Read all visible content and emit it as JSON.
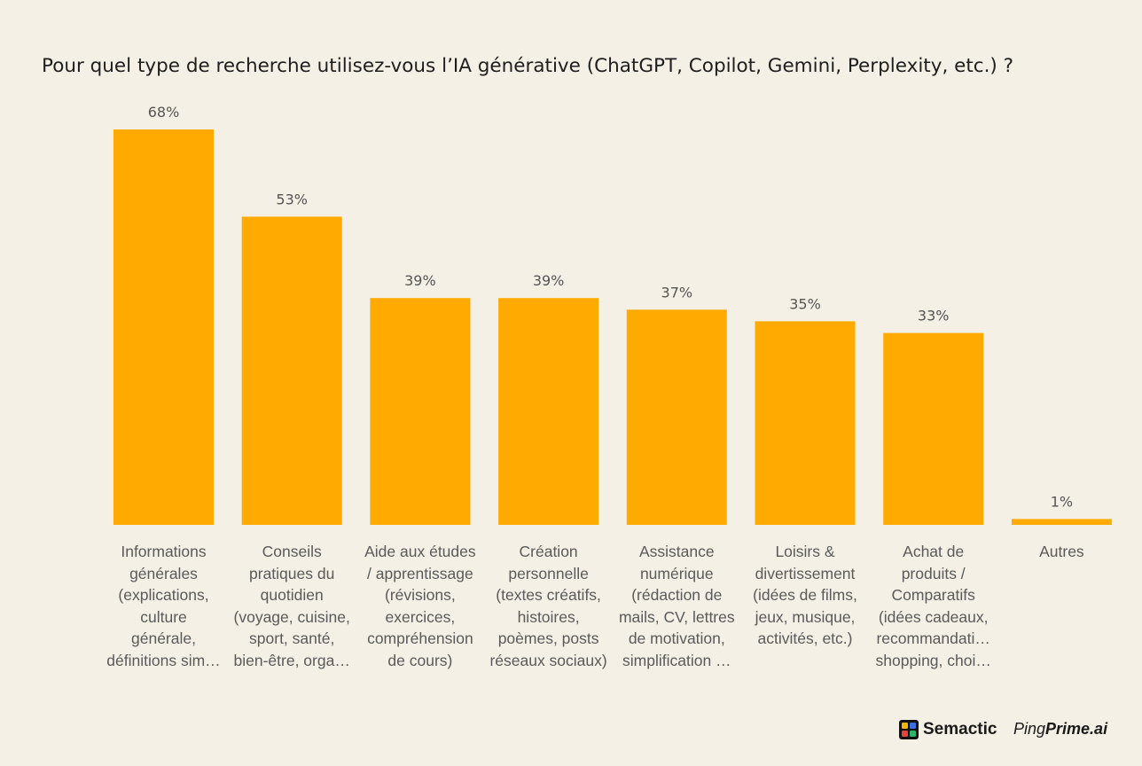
{
  "chart_data": {
    "type": "bar",
    "title": "Pour quel type de recherche utilisez-vous l’IA générative (ChatGPT, Copilot, Gemini, Perplexity, etc.) ?",
    "xlabel": "",
    "ylabel": "",
    "ylim": [
      0,
      68
    ],
    "unit": "%",
    "bar_color": "#FFAA00",
    "categories": [
      [
        "Informations",
        "générales",
        "(explications,",
        "culture",
        "générale,",
        "définitions sim…"
      ],
      [
        "Conseils",
        "pratiques du",
        "quotidien",
        "(voyage, cuisine,",
        "sport, santé,",
        "bien-être, orga…"
      ],
      [
        "Aide aux études",
        "/ apprentissage",
        "(révisions,",
        "exercices,",
        "compréhension",
        "de cours)"
      ],
      [
        "Création",
        "personnelle",
        "(textes créatifs,",
        "histoires,",
        "poèmes, posts",
        "réseaux sociaux)"
      ],
      [
        "Assistance",
        "numérique",
        "(rédaction de",
        "mails, CV, lettres",
        "de motivation,",
        "simplification …"
      ],
      [
        "Loisirs &",
        "divertissement",
        "(idées de films,",
        "jeux, musique,",
        "activités, etc.)"
      ],
      [
        "Achat de",
        "produits /",
        "Comparatifs",
        "(idées cadeaux,",
        "recommandati…",
        "shopping, choi…"
      ],
      [
        "Autres"
      ]
    ],
    "values": [
      68,
      53,
      39,
      39,
      37,
      35,
      33,
      1
    ],
    "value_labels": [
      "68%",
      "53%",
      "39%",
      "39%",
      "37%",
      "35%",
      "33%",
      "1%"
    ],
    "grid": false,
    "legend": "none"
  },
  "branding": {
    "semactic": "Semactic",
    "pingprime_light": "Ping",
    "pingprime_bold": "Prime.ai",
    "semactic_colors": [
      "#F7B500",
      "#3B6FE0",
      "#E8423A",
      "#2DB46B"
    ]
  }
}
